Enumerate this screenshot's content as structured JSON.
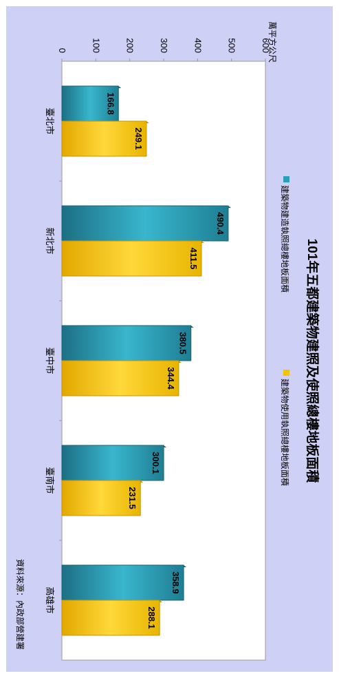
{
  "chart_data": {
    "type": "bar",
    "orientation": "rotated-90-clockwise",
    "title": "101年五都建築物建照及使照總樓地板面積",
    "unit_label": "萬平方公尺",
    "source_note": "資料來源：內政部營建署",
    "categories": [
      "臺北市",
      "新北市",
      "臺中市",
      "臺南市",
      "高雄市"
    ],
    "series": [
      {
        "name": "建築物建造執照總樓地板面積",
        "values": [
          166.8,
          490.4,
          380.5,
          300.1,
          358.9
        ],
        "color": "#2a9fb7"
      },
      {
        "name": "建築物使用執照總樓地板面積",
        "values": [
          249.1,
          411.5,
          344.4,
          231.5,
          288.1
        ],
        "color": "#f5c400"
      }
    ],
    "ylim": [
      0,
      600
    ],
    "yticks": [
      "0",
      "100",
      "200",
      "300",
      "400",
      "500",
      "600"
    ],
    "grid": false,
    "legend_position": "top"
  }
}
